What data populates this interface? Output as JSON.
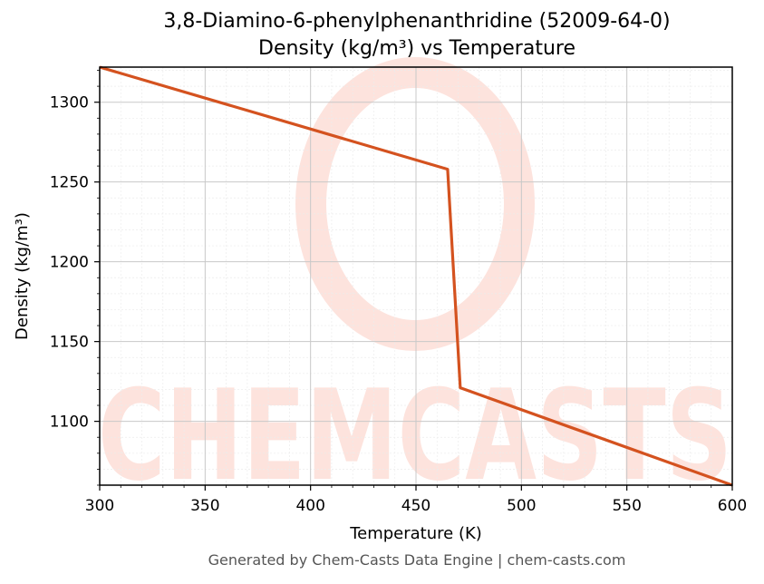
{
  "chart_data": {
    "type": "line",
    "title": "3,8-Diamino-6-phenylphenanthridine (52009-64-0)",
    "subtitle": "Density (kg/m³) vs Temperature",
    "xlabel": "Temperature (K)",
    "ylabel": "Density (kg/m³)",
    "xlim": [
      300,
      600
    ],
    "ylim": [
      1060,
      1322
    ],
    "xticks": [
      300,
      350,
      400,
      450,
      500,
      550,
      600
    ],
    "yticks": [
      1100,
      1150,
      1200,
      1250,
      1300
    ],
    "grid": true,
    "series": [
      {
        "color": "#d4521f",
        "x": [
          300,
          465,
          471,
          600
        ],
        "y": [
          1322,
          1258,
          1121,
          1060
        ]
      }
    ],
    "watermark": "CHEMCASTS",
    "footer": "Generated by Chem-Casts Data Engine | chem-casts.com"
  }
}
